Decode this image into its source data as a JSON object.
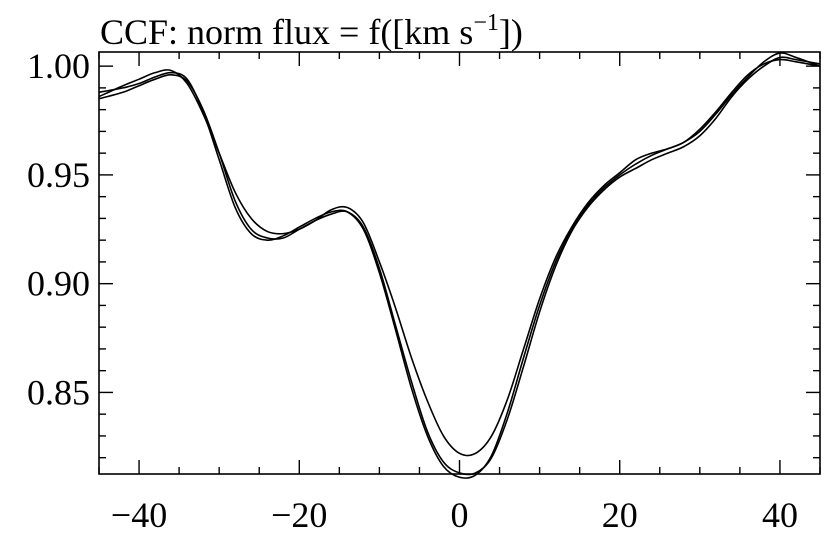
{
  "chart_data": {
    "type": "line",
    "title": "CCF: norm flux = f([km s",
    "title_sup": "−1",
    "title_end": "])",
    "xlim": [
      -45,
      45
    ],
    "ylim": [
      0.8125,
      1.0065
    ],
    "x_ticks": [
      -40,
      -20,
      0,
      20,
      40
    ],
    "x_tick_labels": [
      "−40",
      "−20",
      "0",
      "20",
      "40"
    ],
    "y_ticks": [
      0.85,
      0.9,
      0.95,
      1.0
    ],
    "y_tick_labels": [
      "0.85",
      "0.90",
      "0.95",
      "1.00"
    ],
    "x_minor_step": 5,
    "y_minor_step": 0.01,
    "grid": false,
    "series": [
      {
        "x": [
          -45,
          -42,
          -40,
          -38,
          -36,
          -34,
          -32,
          -30,
          -28,
          -26,
          -24,
          -22,
          -20,
          -18,
          -16,
          -14,
          -12,
          -10,
          -8,
          -6,
          -4,
          -2,
          0,
          2,
          4,
          6,
          8,
          10,
          12,
          14,
          16,
          18,
          20,
          22,
          24,
          26,
          28,
          30,
          32,
          34,
          36,
          38,
          40,
          42,
          45
        ],
        "y": [
          0.986,
          0.991,
          0.994,
          0.997,
          0.998,
          0.992,
          0.978,
          0.96,
          0.942,
          0.93,
          0.924,
          0.923,
          0.925,
          0.929,
          0.934,
          0.935,
          0.928,
          0.91,
          0.889,
          0.866,
          0.846,
          0.83,
          0.822,
          0.822,
          0.83,
          0.847,
          0.87,
          0.893,
          0.912,
          0.926,
          0.937,
          0.945,
          0.951,
          0.957,
          0.96,
          0.962,
          0.965,
          0.97,
          0.978,
          0.987,
          0.995,
          1.002,
          1.006,
          1.004,
          1.0
        ]
      },
      {
        "x": [
          -45,
          -42,
          -40,
          -38,
          -36,
          -34,
          -32,
          -30,
          -28,
          -26,
          -24,
          -22,
          -20,
          -18,
          -16,
          -14,
          -12,
          -10,
          -8,
          -6,
          -4,
          -2,
          0,
          2,
          4,
          6,
          8,
          10,
          12,
          14,
          16,
          18,
          20,
          22,
          24,
          26,
          28,
          30,
          32,
          34,
          36,
          38,
          40,
          42,
          45
        ],
        "y": [
          0.985,
          0.988,
          0.991,
          0.994,
          0.996,
          0.993,
          0.98,
          0.96,
          0.938,
          0.925,
          0.921,
          0.921,
          0.925,
          0.929,
          0.932,
          0.933,
          0.926,
          0.907,
          0.881,
          0.855,
          0.832,
          0.818,
          0.813,
          0.813,
          0.82,
          0.838,
          0.862,
          0.887,
          0.908,
          0.924,
          0.935,
          0.943,
          0.949,
          0.953,
          0.957,
          0.96,
          0.963,
          0.968,
          0.976,
          0.986,
          0.994,
          1.0,
          1.004,
          1.003,
          1.001
        ]
      },
      {
        "x": [
          -45,
          -42,
          -40,
          -38,
          -36,
          -34,
          -32,
          -30,
          -28,
          -26,
          -24,
          -22,
          -20,
          -18,
          -16,
          -14,
          -12,
          -10,
          -8,
          -6,
          -4,
          -2,
          0,
          2,
          4,
          6,
          8,
          10,
          12,
          14,
          16,
          18,
          20,
          22,
          24,
          26,
          28,
          30,
          32,
          34,
          36,
          38,
          40,
          42,
          45
        ],
        "y": [
          0.988,
          0.99,
          0.992,
          0.995,
          0.997,
          0.994,
          0.979,
          0.957,
          0.935,
          0.923,
          0.92,
          0.922,
          0.926,
          0.93,
          0.933,
          0.933,
          0.925,
          0.905,
          0.879,
          0.852,
          0.83,
          0.816,
          0.811,
          0.812,
          0.821,
          0.841,
          0.866,
          0.89,
          0.91,
          0.925,
          0.936,
          0.944,
          0.95,
          0.955,
          0.959,
          0.962,
          0.965,
          0.971,
          0.979,
          0.988,
          0.996,
          1.001,
          1.003,
          1.002,
          1.0
        ]
      }
    ]
  }
}
